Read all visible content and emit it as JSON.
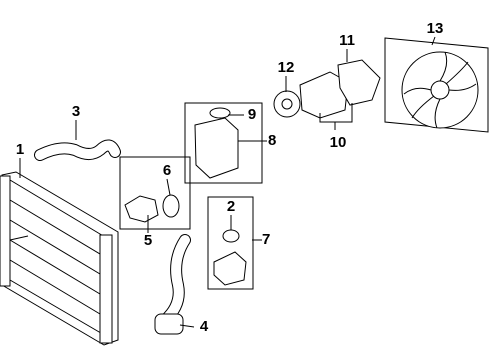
{
  "callouts": [
    {
      "label": "1"
    },
    {
      "label": "2"
    },
    {
      "label": "3"
    },
    {
      "label": "4"
    },
    {
      "label": "5"
    },
    {
      "label": "6"
    },
    {
      "label": "7"
    },
    {
      "label": "8"
    },
    {
      "label": "9"
    },
    {
      "label": "10"
    },
    {
      "label": "11"
    },
    {
      "label": "12"
    },
    {
      "label": "13"
    }
  ]
}
